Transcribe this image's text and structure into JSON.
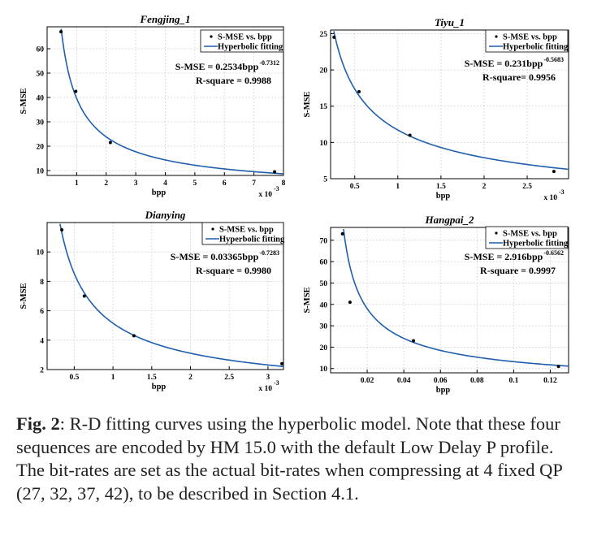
{
  "chart_data": [
    {
      "type": "scatter",
      "title": "Fengjing_1",
      "xlabel": "bpp",
      "ylabel": "S-MSE",
      "x_multiplier": "x 10",
      "x_exponent": "-3",
      "xlim": [
        0,
        8
      ],
      "ylim": [
        8,
        69
      ],
      "xticks": [
        1,
        2,
        3,
        4,
        5,
        6,
        7,
        8
      ],
      "xtick_labels": [
        "1",
        "2",
        "3",
        "4",
        "5",
        "6",
        "7",
        "8"
      ],
      "yticks": [
        10,
        20,
        30,
        40,
        50,
        60
      ],
      "ytick_labels": [
        "10",
        "20",
        "30",
        "40",
        "50",
        "60"
      ],
      "points": [
        [
          0.47,
          67
        ],
        [
          0.97,
          42.5
        ],
        [
          2.14,
          21.5
        ],
        [
          7.7,
          9.5
        ]
      ],
      "fit": {
        "a": 0.2534,
        "b": 0.7312,
        "scale": 0.001,
        "x_range": [
          0.38,
          8
        ]
      },
      "legend": [
        "S-MSE vs. bpp",
        "Hyperbolic fitting"
      ],
      "equation": {
        "prefix": "S-MSE = 0.2534bpp",
        "exponent": "-0.7312"
      },
      "rsquare": "R-square = 0.9988"
    },
    {
      "type": "scatter",
      "title": "Tiyu_1",
      "xlabel": "bpp",
      "ylabel": "S-MSE",
      "x_multiplier": "x 10",
      "x_exponent": "-3",
      "xlim": [
        0.22,
        2.98
      ],
      "ylim": [
        5,
        25.5
      ],
      "xticks": [
        0.5,
        1,
        1.5,
        2,
        2.5
      ],
      "xtick_labels": [
        "0.5",
        "1",
        "1.5",
        "2",
        "2.5"
      ],
      "yticks": [
        5,
        10,
        15,
        20,
        25
      ],
      "ytick_labels": [
        "5",
        "10",
        "15",
        "20",
        "25"
      ],
      "points": [
        [
          0.26,
          24.5
        ],
        [
          0.55,
          17
        ],
        [
          1.14,
          11
        ],
        [
          2.81,
          6
        ]
      ],
      "fit": {
        "a": 0.231,
        "b": 0.5683,
        "scale": 0.001,
        "x_range": [
          0.24,
          2.98
        ]
      },
      "legend": [
        "S-MSE vs. bpp",
        "Hyperbolic fitting"
      ],
      "equation": {
        "prefix": "S-MSE = 0.231bpp",
        "exponent": "-0.5683"
      },
      "rsquare": "R-square= 0.9956"
    },
    {
      "type": "scatter",
      "title": "Dianying",
      "xlabel": "bpp",
      "ylabel": "S-MSE",
      "x_multiplier": "x 10",
      "x_exponent": "-3",
      "xlim": [
        0.15,
        3.2
      ],
      "ylim": [
        2,
        12
      ],
      "xticks": [
        0.5,
        1,
        1.5,
        2,
        2.5,
        3
      ],
      "xtick_labels": [
        "0.5",
        "1",
        "1.5",
        "2",
        "2.5",
        "3"
      ],
      "yticks": [
        2,
        4,
        6,
        8,
        10
      ],
      "ytick_labels": [
        "2",
        "4",
        "6",
        "8",
        "10"
      ],
      "points": [
        [
          0.34,
          11.5
        ],
        [
          0.63,
          7
        ],
        [
          1.27,
          4.3
        ],
        [
          3.18,
          2.4
        ]
      ],
      "fit": {
        "a": 0.03365,
        "b": 0.7283,
        "scale": 0.001,
        "x_range": [
          0.28,
          3.2
        ]
      },
      "legend": [
        "S-MSE vs. bpp",
        "Hyperbolic fitting"
      ],
      "equation": {
        "prefix": "S-MSE = 0.03365bpp",
        "exponent": "-0.7283"
      },
      "rsquare": "R-square = 0.9980"
    },
    {
      "type": "scatter",
      "title": "Hangpai_2",
      "xlabel": "bpp",
      "ylabel": "S-MSE",
      "xlim": [
        0,
        0.13
      ],
      "ylim": [
        8,
        76
      ],
      "xticks": [
        0.02,
        0.04,
        0.06,
        0.08,
        0.1,
        0.12
      ],
      "xtick_labels": [
        "0.02",
        "0.04",
        "0.06",
        "0.08",
        "0.1",
        "0.12"
      ],
      "yticks": [
        10,
        20,
        30,
        40,
        50,
        60,
        70
      ],
      "ytick_labels": [
        "10",
        "20",
        "30",
        "40",
        "50",
        "60",
        "70"
      ],
      "points": [
        [
          0.0065,
          73
        ],
        [
          0.0106,
          41
        ],
        [
          0.0453,
          23
        ],
        [
          0.1245,
          11
        ]
      ],
      "fit": {
        "a": 2.916,
        "b": 0.6562,
        "scale": 1,
        "x_range": [
          0.0055,
          0.13
        ]
      },
      "legend": [
        "S-MSE vs. bpp",
        "Hyperbolic fitting"
      ],
      "equation": {
        "prefix": "S-MSE = 2.916bpp",
        "exponent": "-0.6562"
      },
      "rsquare": "R-square = 0.9997"
    }
  ],
  "caption": {
    "label": "Fig. 2",
    "text": ": R-D fitting curves using the hyperbolic model. Note that these four sequences are encoded by HM 15.0 with the default Low Delay P profile. The bit-rates are set as the actual bit-rates when compressing at 4 fixed QP (27, 32, 37, 42), to be described in Section 4.1."
  },
  "colors": {
    "curve": "#1f5fae",
    "marker": "#000000",
    "grid": "#c8c8c8",
    "axis": "#000000"
  }
}
